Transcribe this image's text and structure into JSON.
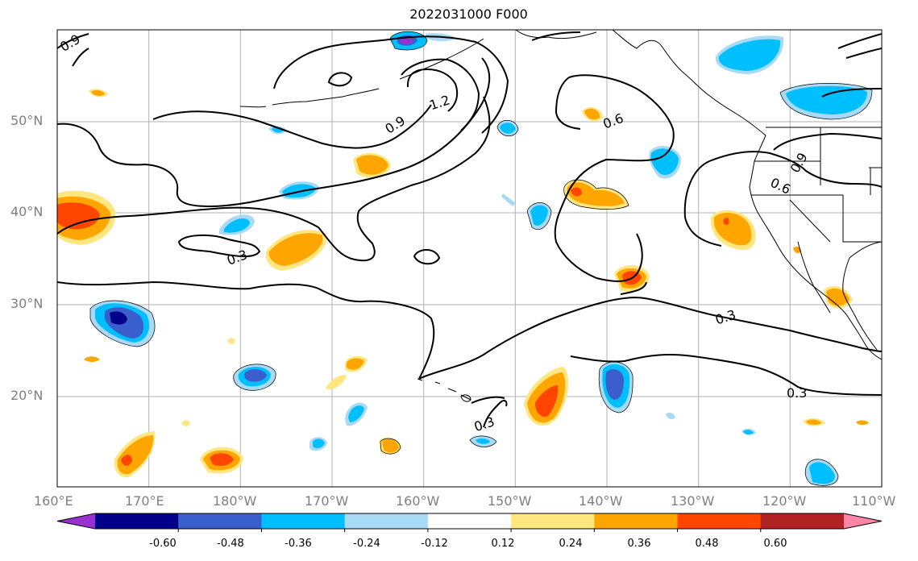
{
  "title": "2022031000 F000",
  "map": {
    "projection": "Mercator",
    "lon_range": [
      160,
      250
    ],
    "lat_range": [
      10,
      60
    ],
    "gridlines": true,
    "lon_ticks": [
      "160°E",
      "170°E",
      "180°W",
      "170°W",
      "160°W",
      "150°W",
      "140°W",
      "130°W",
      "120°W",
      "110°W"
    ],
    "lat_ticks": [
      "50°N",
      "40°N",
      "30°N",
      "20°N"
    ]
  },
  "contours": {
    "color": "#000000",
    "labels": [
      "0.9",
      "1.2",
      "0.9",
      "0.6",
      "0.6",
      "0.9",
      "0.3",
      "0.3",
      "0.3",
      "0.3"
    ]
  },
  "colorbar": {
    "tick_labels": [
      "-0.60",
      "-0.48",
      "-0.36",
      "-0.24",
      "-0.12",
      "0.12",
      "0.24",
      "0.36",
      "0.48",
      "0.60"
    ],
    "colors": [
      "#9b30d0",
      "#00008b",
      "#3a5fcd",
      "#00bfff",
      "#a8daf5",
      "#ffffff",
      "#ffe680",
      "#ffa500",
      "#ff4500",
      "#b22222",
      "#ff85a8"
    ]
  }
}
